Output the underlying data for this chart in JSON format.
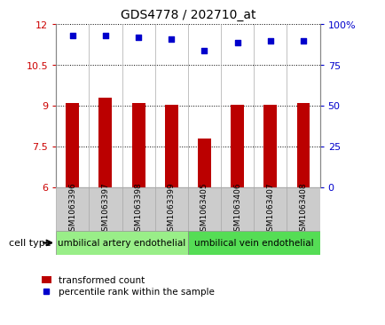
{
  "title": "GDS4778 / 202710_at",
  "categories": [
    "GSM1063396",
    "GSM1063397",
    "GSM1063398",
    "GSM1063399",
    "GSM1063405",
    "GSM1063406",
    "GSM1063407",
    "GSM1063408"
  ],
  "bar_values": [
    9.1,
    9.3,
    9.1,
    9.05,
    7.8,
    9.05,
    9.05,
    9.1
  ],
  "percentile_values": [
    93,
    93,
    92,
    91,
    84,
    89,
    90,
    90
  ],
  "bar_color": "#bb0000",
  "dot_color": "#0000cc",
  "ylim_left": [
    6,
    12
  ],
  "ylim_right": [
    0,
    100
  ],
  "yticks_left": [
    6,
    7.5,
    9,
    10.5,
    12
  ],
  "yticks_right": [
    0,
    25,
    50,
    75,
    100
  ],
  "ytick_labels_left": [
    "6",
    "7.5",
    "9",
    "10.5",
    "12"
  ],
  "ytick_labels_right": [
    "0",
    "25",
    "50",
    "75",
    "100%"
  ],
  "cell_type_groups": [
    {
      "label": "umbilical artery endothelial",
      "start": 0,
      "end": 3,
      "color": "#99ee88"
    },
    {
      "label": "umbilical vein endothelial",
      "start": 4,
      "end": 7,
      "color": "#55dd55"
    }
  ],
  "cell_type_label": "cell type",
  "legend_bar_label": "transformed count",
  "legend_dot_label": "percentile rank within the sample",
  "tick_color_left": "#cc0000",
  "tick_color_right": "#0000cc",
  "bar_width": 0.4,
  "xlab_cell_color": "#cccccc",
  "xlab_cell_edge": "#aaaaaa"
}
